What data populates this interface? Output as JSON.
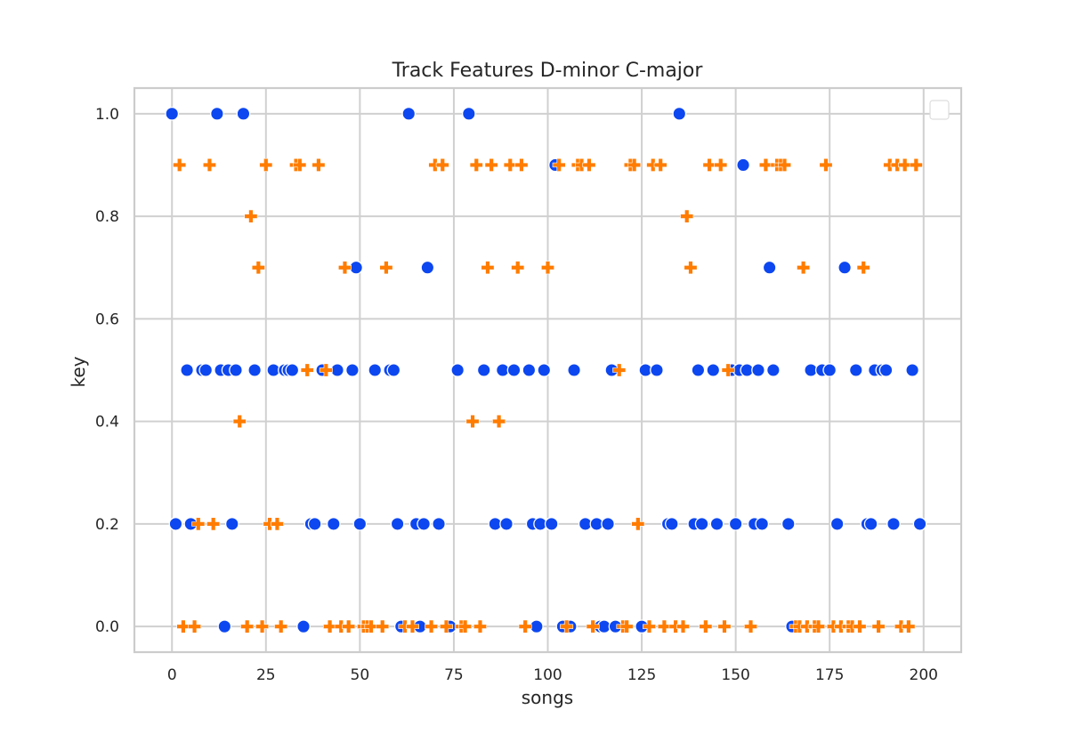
{
  "chart_data": {
    "type": "scatter",
    "title": "Track Features D-minor C-major",
    "xlabel": "songs",
    "ylabel": "key",
    "xlim": [
      -10,
      210
    ],
    "ylim": [
      -0.05,
      1.05
    ],
    "x_ticks": [
      0,
      25,
      50,
      75,
      100,
      125,
      150,
      175,
      200
    ],
    "y_ticks": [
      0.0,
      0.2,
      0.4,
      0.6,
      0.8,
      1.0
    ],
    "grid": true,
    "legend": "top-right (empty)",
    "series": [
      {
        "marker": "circle",
        "color": "#0d47f0",
        "points": [
          [
            0,
            1.0
          ],
          [
            1,
            0.2
          ],
          [
            4,
            0.5
          ],
          [
            5,
            0.2
          ],
          [
            8,
            0.5
          ],
          [
            9,
            0.5
          ],
          [
            12,
            1.0
          ],
          [
            13,
            0.5
          ],
          [
            14,
            0.0
          ],
          [
            15,
            0.5
          ],
          [
            16,
            0.2
          ],
          [
            17,
            0.5
          ],
          [
            19,
            1.0
          ],
          [
            22,
            0.5
          ],
          [
            27,
            0.5
          ],
          [
            30,
            0.5
          ],
          [
            31,
            0.5
          ],
          [
            32,
            0.5
          ],
          [
            35,
            0.0
          ],
          [
            37,
            0.2
          ],
          [
            38,
            0.2
          ],
          [
            40,
            0.5
          ],
          [
            43,
            0.2
          ],
          [
            44,
            0.5
          ],
          [
            48,
            0.5
          ],
          [
            49,
            0.7
          ],
          [
            50,
            0.2
          ],
          [
            54,
            0.5
          ],
          [
            58,
            0.5
          ],
          [
            59,
            0.5
          ],
          [
            60,
            0.2
          ],
          [
            61,
            0.0
          ],
          [
            63,
            1.0
          ],
          [
            65,
            0.2
          ],
          [
            66,
            0.0
          ],
          [
            67,
            0.2
          ],
          [
            68,
            0.7
          ],
          [
            71,
            0.2
          ],
          [
            74,
            0.0
          ],
          [
            76,
            0.5
          ],
          [
            79,
            1.0
          ],
          [
            83,
            0.5
          ],
          [
            86,
            0.2
          ],
          [
            88,
            0.5
          ],
          [
            89,
            0.2
          ],
          [
            91,
            0.5
          ],
          [
            95,
            0.5
          ],
          [
            96,
            0.2
          ],
          [
            97,
            0.0
          ],
          [
            98,
            0.2
          ],
          [
            99,
            0.5
          ],
          [
            101,
            0.2
          ],
          [
            102,
            0.9
          ],
          [
            104,
            0.0
          ],
          [
            106,
            0.0
          ],
          [
            107,
            0.5
          ],
          [
            110,
            0.2
          ],
          [
            113,
            0.2
          ],
          [
            114,
            0.0
          ],
          [
            115,
            0.0
          ],
          [
            116,
            0.2
          ],
          [
            117,
            0.5
          ],
          [
            118,
            0.0
          ],
          [
            125,
            0.0
          ],
          [
            126,
            0.5
          ],
          [
            129,
            0.5
          ],
          [
            132,
            0.2
          ],
          [
            133,
            0.2
          ],
          [
            135,
            1.0
          ],
          [
            139,
            0.2
          ],
          [
            140,
            0.5
          ],
          [
            141,
            0.2
          ],
          [
            144,
            0.5
          ],
          [
            145,
            0.2
          ],
          [
            149,
            0.5
          ],
          [
            150,
            0.2
          ],
          [
            151,
            0.5
          ],
          [
            152,
            0.9
          ],
          [
            153,
            0.5
          ],
          [
            155,
            0.2
          ],
          [
            156,
            0.5
          ],
          [
            157,
            0.2
          ],
          [
            159,
            0.7
          ],
          [
            160,
            0.5
          ],
          [
            164,
            0.2
          ],
          [
            165,
            0.0
          ],
          [
            170,
            0.5
          ],
          [
            173,
            0.5
          ],
          [
            175,
            0.5
          ],
          [
            177,
            0.2
          ],
          [
            179,
            0.7
          ],
          [
            182,
            0.5
          ],
          [
            185,
            0.2
          ],
          [
            186,
            0.2
          ],
          [
            187,
            0.5
          ],
          [
            189,
            0.5
          ],
          [
            190,
            0.5
          ],
          [
            192,
            0.2
          ],
          [
            197,
            0.5
          ],
          [
            199,
            0.2
          ]
        ]
      },
      {
        "marker": "plus",
        "color": "#ff7c00",
        "points": [
          [
            2,
            0.9
          ],
          [
            3,
            0.0
          ],
          [
            6,
            0.0
          ],
          [
            7,
            0.2
          ],
          [
            10,
            0.9
          ],
          [
            11,
            0.2
          ],
          [
            18,
            0.4
          ],
          [
            20,
            0.0
          ],
          [
            21,
            0.8
          ],
          [
            23,
            0.7
          ],
          [
            24,
            0.0
          ],
          [
            25,
            0.9
          ],
          [
            26,
            0.2
          ],
          [
            28,
            0.2
          ],
          [
            29,
            0.0
          ],
          [
            33,
            0.9
          ],
          [
            34,
            0.9
          ],
          [
            36,
            0.5
          ],
          [
            39,
            0.9
          ],
          [
            41,
            0.5
          ],
          [
            42,
            0.0
          ],
          [
            45,
            0.0
          ],
          [
            46,
            0.7
          ],
          [
            47,
            0.0
          ],
          [
            51,
            0.0
          ],
          [
            52,
            0.0
          ],
          [
            53,
            0.0
          ],
          [
            56,
            0.0
          ],
          [
            57,
            0.7
          ],
          [
            62,
            0.0
          ],
          [
            64,
            0.0
          ],
          [
            69,
            0.0
          ],
          [
            70,
            0.9
          ],
          [
            72,
            0.9
          ],
          [
            73,
            0.0
          ],
          [
            77,
            0.0
          ],
          [
            78,
            0.0
          ],
          [
            80,
            0.4
          ],
          [
            81,
            0.9
          ],
          [
            82,
            0.0
          ],
          [
            84,
            0.7
          ],
          [
            85,
            0.9
          ],
          [
            87,
            0.4
          ],
          [
            90,
            0.9
          ],
          [
            92,
            0.7
          ],
          [
            93,
            0.9
          ],
          [
            94,
            0.0
          ],
          [
            100,
            0.7
          ],
          [
            103,
            0.9
          ],
          [
            105,
            0.0
          ],
          [
            108,
            0.9
          ],
          [
            109,
            0.9
          ],
          [
            111,
            0.9
          ],
          [
            112,
            0.0
          ],
          [
            119,
            0.5
          ],
          [
            120,
            0.0
          ],
          [
            121,
            0.0
          ],
          [
            122,
            0.9
          ],
          [
            123,
            0.9
          ],
          [
            124,
            0.2
          ],
          [
            127,
            0.0
          ],
          [
            128,
            0.9
          ],
          [
            130,
            0.9
          ],
          [
            131,
            0.0
          ],
          [
            134,
            0.0
          ],
          [
            136,
            0.0
          ],
          [
            137,
            0.8
          ],
          [
            138,
            0.7
          ],
          [
            142,
            0.0
          ],
          [
            143,
            0.9
          ],
          [
            146,
            0.9
          ],
          [
            147,
            0.0
          ],
          [
            148,
            0.5
          ],
          [
            154,
            0.0
          ],
          [
            158,
            0.9
          ],
          [
            161,
            0.9
          ],
          [
            162,
            0.9
          ],
          [
            163,
            0.9
          ],
          [
            166,
            0.0
          ],
          [
            167,
            0.0
          ],
          [
            168,
            0.7
          ],
          [
            169,
            0.0
          ],
          [
            171,
            0.0
          ],
          [
            172,
            0.0
          ],
          [
            174,
            0.9
          ],
          [
            176,
            0.0
          ],
          [
            178,
            0.0
          ],
          [
            180,
            0.0
          ],
          [
            181,
            0.0
          ],
          [
            183,
            0.0
          ],
          [
            184,
            0.7
          ],
          [
            188,
            0.0
          ],
          [
            191,
            0.9
          ],
          [
            193,
            0.9
          ],
          [
            194,
            0.0
          ],
          [
            195,
            0.9
          ],
          [
            196,
            0.0
          ],
          [
            198,
            0.9
          ]
        ]
      }
    ]
  }
}
